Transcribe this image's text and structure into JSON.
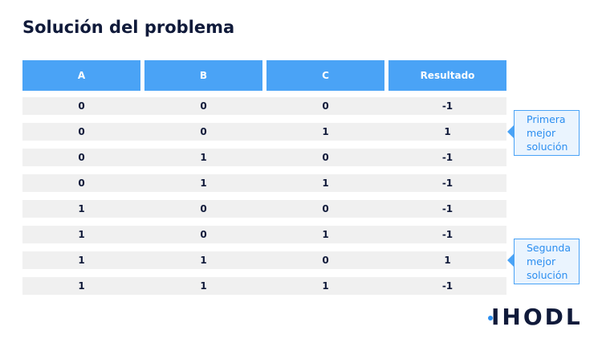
{
  "header": {
    "title": "Solución del problema"
  },
  "table": {
    "columns": [
      "A",
      "B",
      "C",
      "Resultado"
    ],
    "rows": [
      [
        0,
        0,
        0,
        -1
      ],
      [
        0,
        0,
        1,
        1
      ],
      [
        0,
        1,
        0,
        -1
      ],
      [
        0,
        1,
        1,
        -1
      ],
      [
        1,
        0,
        0,
        -1
      ],
      [
        1,
        0,
        1,
        -1
      ],
      [
        1,
        1,
        0,
        1
      ],
      [
        1,
        1,
        1,
        -1
      ]
    ]
  },
  "annotations": [
    {
      "text": "Primera mejor solución",
      "row": 1
    },
    {
      "text": "Segunda mejor solución",
      "row": 6
    }
  ],
  "logo": "IHODL"
}
